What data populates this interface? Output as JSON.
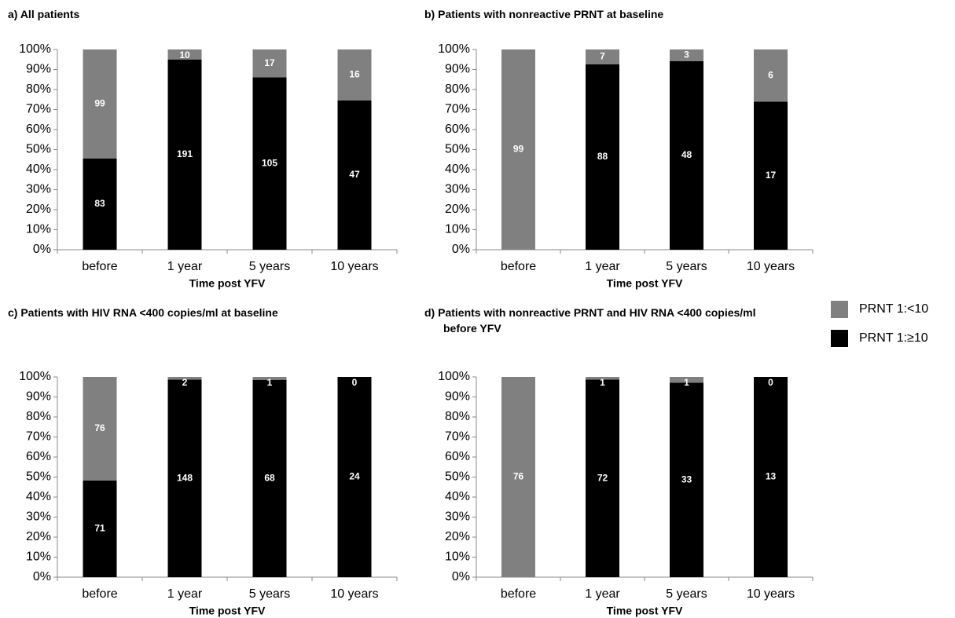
{
  "legend": {
    "position": "right",
    "series": [
      {
        "name": "PRNT 1:≥10",
        "color": "#000000"
      },
      {
        "name": "PRNT 1:<10",
        "color": "#808080"
      }
    ]
  },
  "chart_data": [
    {
      "type": "bar",
      "stacked": "percent",
      "title": "a)  All patients",
      "x_label": "Time post YFV",
      "categories": [
        "before",
        "1 year",
        "5 years",
        "10 years"
      ],
      "series": [
        {
          "values": [
            83,
            191,
            105,
            47
          ]
        },
        {
          "values": [
            99,
            10,
            17,
            16
          ]
        }
      ],
      "ylim": [
        0,
        100
      ],
      "yticks": [
        {
          "value": 0,
          "label": "0%"
        },
        {
          "value": 10,
          "label": "10%"
        },
        {
          "value": 20,
          "label": "20%"
        },
        {
          "value": 30,
          "label": "30%"
        },
        {
          "value": 40,
          "label": "40%"
        },
        {
          "value": 50,
          "label": "50%"
        },
        {
          "value": 60,
          "label": "60%"
        },
        {
          "value": 70,
          "label": "70%"
        },
        {
          "value": 80,
          "label": "80%"
        },
        {
          "value": 90,
          "label": "90%"
        },
        {
          "value": 100,
          "label": "100%"
        }
      ]
    },
    {
      "type": "bar",
      "stacked": "percent",
      "title": "b)  Patients with nonreactive PRNT at baseline",
      "x_label": "Time post YFV",
      "categories": [
        "before",
        "1 year",
        "5 years",
        "10 years"
      ],
      "series": [
        {
          "values": [
            0,
            88,
            48,
            17
          ]
        },
        {
          "values": [
            99,
            7,
            3,
            6
          ]
        }
      ],
      "ylim": [
        0,
        100
      ],
      "yticks": [
        {
          "value": 0,
          "label": "0%"
        },
        {
          "value": 10,
          "label": "10%"
        },
        {
          "value": 20,
          "label": "20%"
        },
        {
          "value": 30,
          "label": "30%"
        },
        {
          "value": 40,
          "label": "40%"
        },
        {
          "value": 50,
          "label": "50%"
        },
        {
          "value": 60,
          "label": "60%"
        },
        {
          "value": 70,
          "label": "70%"
        },
        {
          "value": 80,
          "label": "80%"
        },
        {
          "value": 90,
          "label": "90%"
        },
        {
          "value": 100,
          "label": "100%"
        }
      ]
    },
    {
      "type": "bar",
      "stacked": "percent",
      "title": "c)  Patients with HIV RNA <400 copies/ml at baseline",
      "x_label": "Time post YFV",
      "categories": [
        "before",
        "1 year",
        "5 years",
        "10 years"
      ],
      "series": [
        {
          "values": [
            71,
            148,
            68,
            24
          ]
        },
        {
          "values": [
            76,
            2,
            1,
            0
          ]
        }
      ],
      "ylim": [
        0,
        100
      ],
      "yticks": [
        {
          "value": 0,
          "label": "0%"
        },
        {
          "value": 10,
          "label": "10%"
        },
        {
          "value": 20,
          "label": "20%"
        },
        {
          "value": 30,
          "label": "30%"
        },
        {
          "value": 40,
          "label": "40%"
        },
        {
          "value": 50,
          "label": "50%"
        },
        {
          "value": 60,
          "label": "60%"
        },
        {
          "value": 70,
          "label": "70%"
        },
        {
          "value": 80,
          "label": "80%"
        },
        {
          "value": 90,
          "label": "90%"
        },
        {
          "value": 100,
          "label": "100%"
        }
      ]
    },
    {
      "type": "bar",
      "stacked": "percent",
      "title": "d)  Patients with nonreactive PRNT and HIV RNA <400 copies/ml before YFV",
      "x_label": "Time post YFV",
      "categories": [
        "before",
        "1 year",
        "5 years",
        "10 years"
      ],
      "series": [
        {
          "values": [
            0,
            72,
            33,
            13
          ]
        },
        {
          "values": [
            76,
            1,
            1,
            0
          ]
        }
      ],
      "ylim": [
        0,
        100
      ],
      "yticks": [
        {
          "value": 0,
          "label": "0%"
        },
        {
          "value": 10,
          "label": "10%"
        },
        {
          "value": 20,
          "label": "20%"
        },
        {
          "value": 30,
          "label": "30%"
        },
        {
          "value": 40,
          "label": "40%"
        },
        {
          "value": 50,
          "label": "50%"
        },
        {
          "value": 60,
          "label": "60%"
        },
        {
          "value": 70,
          "label": "70%"
        },
        {
          "value": 80,
          "label": "80%"
        },
        {
          "value": 90,
          "label": "90%"
        },
        {
          "value": 100,
          "label": "100%"
        }
      ]
    }
  ]
}
